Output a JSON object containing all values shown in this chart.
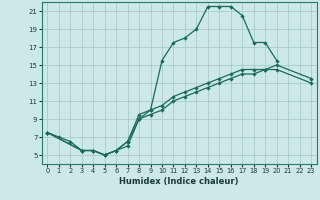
{
  "title": "",
  "xlabel": "Humidex (Indice chaleur)",
  "bg_color": "#cce8e8",
  "grid_color": "#aacccc",
  "line_color": "#1a6b5a",
  "xlim": [
    -0.5,
    23.5
  ],
  "ylim": [
    4.0,
    22.0
  ],
  "xticks": [
    0,
    1,
    2,
    3,
    4,
    5,
    6,
    7,
    8,
    9,
    10,
    11,
    12,
    13,
    14,
    15,
    16,
    17,
    18,
    19,
    20,
    21,
    22,
    23
  ],
  "yticks": [
    5,
    7,
    9,
    11,
    13,
    15,
    17,
    19,
    21
  ],
  "line1_x": [
    0,
    1,
    2,
    3,
    4,
    5,
    6,
    7,
    8,
    9,
    10,
    11,
    12,
    13,
    14,
    15,
    16,
    17,
    18,
    19,
    20
  ],
  "line1_y": [
    7.5,
    7.0,
    6.5,
    5.5,
    5.5,
    5.0,
    5.5,
    6.5,
    9.0,
    10.0,
    15.5,
    17.5,
    18.0,
    19.0,
    21.5,
    21.5,
    21.5,
    20.5,
    17.5,
    17.5,
    15.5
  ],
  "line2_x": [
    0,
    3,
    4,
    5,
    6,
    7,
    8,
    9,
    10,
    11,
    12,
    13,
    14,
    15,
    16,
    17,
    18,
    19,
    20,
    23
  ],
  "line2_y": [
    7.5,
    5.5,
    5.5,
    5.0,
    5.5,
    6.5,
    9.5,
    10.0,
    10.5,
    11.5,
    12.0,
    12.5,
    13.0,
    13.5,
    14.0,
    14.5,
    14.5,
    14.5,
    15.0,
    13.5
  ],
  "line3_x": [
    0,
    3,
    4,
    5,
    6,
    7,
    8,
    9,
    10,
    11,
    12,
    13,
    14,
    15,
    16,
    17,
    18,
    19,
    20,
    23
  ],
  "line3_y": [
    7.5,
    5.5,
    5.5,
    5.0,
    5.5,
    6.0,
    9.0,
    9.5,
    10.0,
    11.0,
    11.5,
    12.0,
    12.5,
    13.0,
    13.5,
    14.0,
    14.0,
    14.5,
    14.5,
    13.0
  ]
}
